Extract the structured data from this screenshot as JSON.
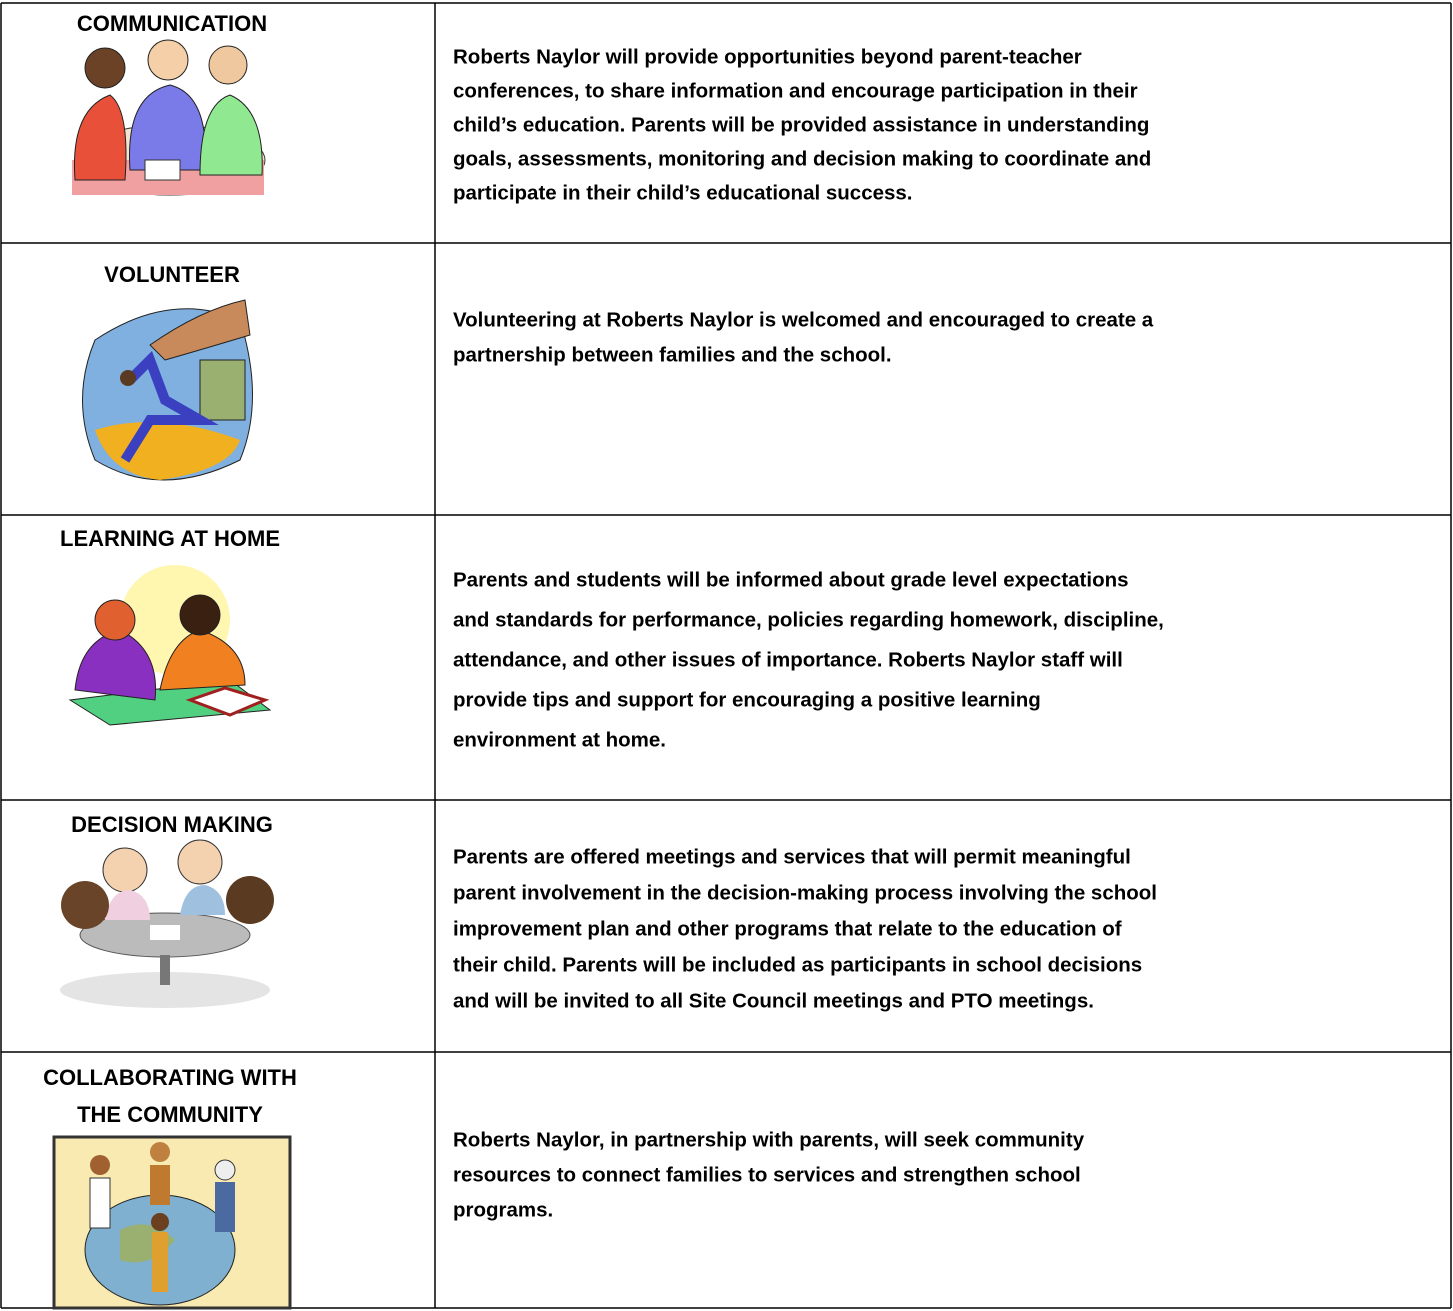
{
  "rows": [
    {
      "title": [
        "COMMUNICATION"
      ],
      "text": [
        "Roberts Naylor will provide opportunities beyond parent-teacher",
        "conferences, to share information and encourage participation in their",
        "child’s education. Parents will be provided assistance in understanding",
        "goals, assessments, monitoring and decision making to coordinate and",
        "participate in their child’s educational success."
      ]
    },
    {
      "title": [
        "VOLUNTEER"
      ],
      "text": [
        "Volunteering at Roberts Naylor is welcomed and encouraged to create a",
        "partnership between families and the school."
      ]
    },
    {
      "title": [
        "LEARNING AT HOME"
      ],
      "text": [
        "Parents and students will be informed about grade level expectations",
        "and standards for performance, policies regarding homework, discipline,",
        "attendance, and other issues of importance. Roberts Naylor staff will",
        "provide tips and support for encouraging a positive learning",
        "environment at home."
      ]
    },
    {
      "title": [
        "DECISION MAKING"
      ],
      "text": [
        "Parents are offered meetings and services that will permit meaningful",
        "parent involvement in the decision-making process involving the school",
        "improvement plan and other programs that relate to the education of",
        "their child. Parents will be included as participants in school decisions",
        "and will be invited to all Site Council meetings and PTO meetings."
      ]
    },
    {
      "title": [
        "COLLABORATING WITH",
        "THE COMMUNITY"
      ],
      "text": [
        "Roberts Naylor, in partnership with parents, will seek community",
        "resources to connect families to services and strengthen school",
        "programs."
      ]
    }
  ]
}
